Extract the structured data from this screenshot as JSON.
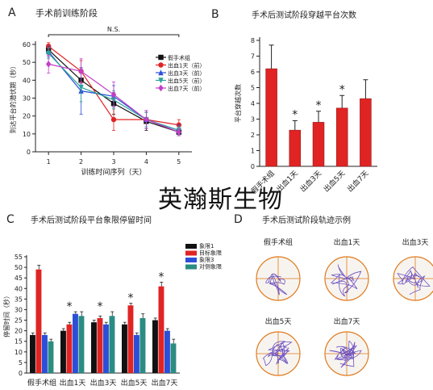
{
  "watermark": "英瀚斯生物",
  "chart_data": [
    {
      "type": "line",
      "panel_letter": "A",
      "title": "手术前训练阶段",
      "xlabel": "训练时间序列（天）",
      "ylabel": "到达平台的潜伏期（秒）",
      "annotation": "N.S.",
      "x": [
        1,
        2,
        3,
        4,
        5
      ],
      "xlim": [
        0.6,
        5.4
      ],
      "ylim": [
        0,
        60
      ],
      "yticks": [
        0,
        10,
        20,
        30,
        40,
        50,
        60
      ],
      "series": [
        {
          "name": "假手术组",
          "color": "#111111",
          "marker": "square",
          "values": [
            57,
            40,
            27,
            17,
            11
          ],
          "errors": [
            3,
            7,
            6,
            5,
            2
          ]
        },
        {
          "name": "出血1天（前）",
          "color": "#e02424",
          "marker": "circle",
          "values": [
            59,
            45,
            18,
            18,
            15
          ],
          "errors": [
            2,
            6,
            6,
            5,
            3
          ]
        },
        {
          "name": "出血3天（前）",
          "color": "#2b4fd8",
          "marker": "triangle",
          "values": [
            56,
            34,
            31,
            18,
            12
          ],
          "errors": [
            3,
            13,
            6,
            5,
            3
          ]
        },
        {
          "name": "出血5天（前）",
          "color": "#2aa39a",
          "marker": "triangle-down",
          "values": [
            55,
            36,
            29,
            18,
            12
          ],
          "errors": [
            3,
            8,
            5,
            4,
            2
          ]
        },
        {
          "name": "出血7天（前）",
          "color": "#c23fc8",
          "marker": "diamond",
          "values": [
            49,
            45,
            32,
            18,
            11
          ],
          "errors": [
            5,
            7,
            7,
            5,
            2
          ]
        }
      ],
      "legend_placement": "top-right"
    },
    {
      "type": "bar",
      "panel_letter": "B",
      "title": "手术后测试阶段穿越平台次数",
      "ylabel": "平台穿越次数",
      "categories": [
        "假手术组",
        "出血1天",
        "出血3天",
        "出血5天",
        "出血7天"
      ],
      "values": [
        6.2,
        2.3,
        2.8,
        3.7,
        4.3
      ],
      "errors": [
        1.5,
        0.6,
        0.7,
        0.8,
        1.2
      ],
      "significant": [
        false,
        true,
        true,
        true,
        false
      ],
      "significance_mark": "*",
      "color": "#e02424",
      "ylim": [
        0,
        8
      ],
      "yticks": [
        0,
        1,
        2,
        3,
        4,
        5,
        6,
        7,
        8
      ]
    },
    {
      "type": "bar",
      "panel_letter": "C",
      "title": "手术后测试阶段平台象限停留时间",
      "ylabel": "停留时间（秒）",
      "categories": [
        "假手术组",
        "出血1天",
        "出血3天",
        "出血5天",
        "出血7天"
      ],
      "series": [
        {
          "name": "象限1",
          "color": "#111111",
          "values": [
            18,
            20,
            24,
            23,
            25
          ],
          "errors": [
            1,
            1,
            1,
            1,
            1
          ]
        },
        {
          "name": "目标象限",
          "color": "#e02424",
          "values": [
            49,
            23,
            26,
            32,
            41
          ],
          "errors": [
            2,
            1,
            1,
            1,
            2
          ]
        },
        {
          "name": "象限3",
          "color": "#2b4fd8",
          "values": [
            18,
            28,
            23,
            18,
            20
          ],
          "errors": [
            1,
            1,
            1,
            1,
            1
          ]
        },
        {
          "name": "对侧象限",
          "color": "#2a8c82",
          "values": [
            15,
            27,
            27,
            26,
            14
          ],
          "errors": [
            1,
            2,
            2,
            2,
            2
          ]
        }
      ],
      "significant": [
        false,
        true,
        true,
        true,
        true
      ],
      "significance_mark": "*",
      "ylim": [
        0,
        55
      ],
      "yticks": [
        0,
        5,
        10,
        15,
        20,
        25,
        30,
        35,
        40,
        45,
        50,
        55
      ],
      "legend_placement": "top-right"
    },
    {
      "type": "other",
      "panel_letter": "D",
      "title": "手术后测试阶段轨迹示例",
      "panels": [
        "假手术组",
        "出血1天",
        "出血3天",
        "出血5天",
        "出血7天"
      ]
    }
  ]
}
